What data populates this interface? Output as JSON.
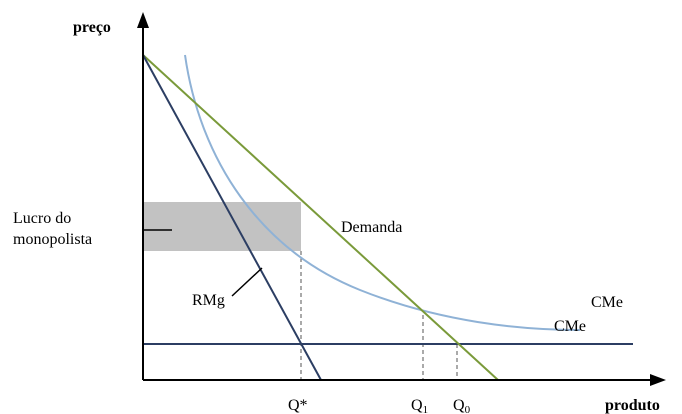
{
  "axes": {
    "y_label": "preço",
    "x_label": "produto"
  },
  "curves": {
    "demand_label": "Demanda",
    "marginal_revenue_label": "RMg",
    "average_cost_label_upper": "CMe",
    "average_cost_label_lower": "CMe"
  },
  "profit_area": {
    "label_line1": "Lucro do",
    "label_line2": "monopolista"
  },
  "quantities": {
    "q_star": {
      "base": "Q*",
      "sub": ""
    },
    "q1": {
      "base": "Q",
      "sub": "1"
    },
    "q0": {
      "base": "Q",
      "sub": "0"
    }
  },
  "colors": {
    "demand": "#7a9a3a",
    "marginal_revenue": "#2c3e63",
    "average_cost": "#8fb2d6",
    "price_line": "#2c3e63",
    "profit_fill": "#c2c2c2",
    "axes": "#000000",
    "guides": "#555555"
  }
}
